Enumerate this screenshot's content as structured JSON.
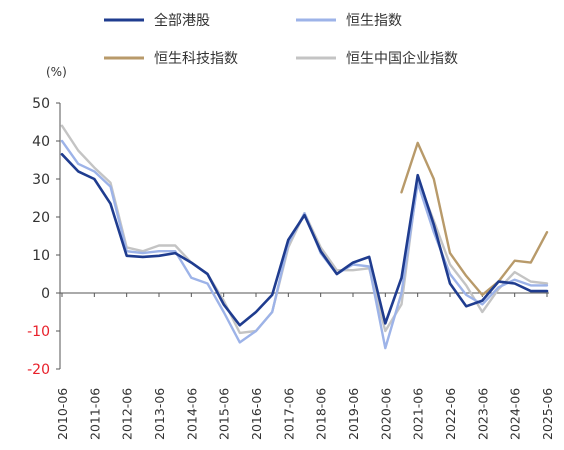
{
  "chart_data": {
    "type": "line",
    "unit_label": "(%)",
    "x": [
      "2010-06",
      "2010-12",
      "2011-06",
      "2011-12",
      "2012-06",
      "2012-12",
      "2013-06",
      "2013-12",
      "2014-06",
      "2014-12",
      "2015-06",
      "2015-12",
      "2016-06",
      "2016-12",
      "2017-06",
      "2017-12",
      "2018-06",
      "2018-12",
      "2019-06",
      "2019-12",
      "2020-06",
      "2020-12",
      "2021-06",
      "2021-12",
      "2022-06",
      "2022-12",
      "2023-06",
      "2023-12",
      "2024-06",
      "2024-12",
      "2025-06"
    ],
    "x_tick_labels": [
      "2010-06",
      "2011-06",
      "2012-06",
      "2013-06",
      "2014-06",
      "2015-06",
      "2016-06",
      "2017-06",
      "2018-06",
      "2019-06",
      "2020-06",
      "2021-06",
      "2022-06",
      "2023-06",
      "2024-06",
      "2025-06"
    ],
    "ylim": [
      -20,
      50
    ],
    "y_ticks": [
      50,
      40,
      30,
      20,
      10,
      0,
      -10,
      -20
    ],
    "negative_tick_color": "#e8202a",
    "legend_position": "top",
    "series": [
      {
        "name": "全部港股",
        "color": "#1f3c8f",
        "values": [
          36.5,
          32,
          30,
          23.5,
          9.8,
          9.5,
          9.8,
          10.5,
          8,
          5,
          -3,
          -8.5,
          -5,
          -0.5,
          14,
          20.5,
          11,
          5,
          8,
          9.5,
          -8,
          4,
          31,
          18,
          2.5,
          -3.5,
          -2,
          3,
          2.5,
          0.5,
          0.5
        ]
      },
      {
        "name": "恒生指数",
        "color": "#9db3e8",
        "values": [
          40,
          34,
          32,
          28,
          11,
          10.5,
          11,
          11,
          4,
          2.5,
          -5,
          -13,
          -10,
          -5,
          13,
          21,
          10.5,
          5,
          7.5,
          7,
          -14.5,
          0,
          29,
          16,
          5,
          -0.5,
          -3,
          1.5,
          3.5,
          2,
          2
        ]
      },
      {
        "name": "恒生科技指数",
        "color": "#b89a6a",
        "values": [
          null,
          null,
          null,
          null,
          null,
          null,
          null,
          null,
          null,
          null,
          null,
          null,
          null,
          null,
          null,
          null,
          null,
          null,
          null,
          null,
          null,
          26.5,
          39.5,
          30,
          10.5,
          4.5,
          -0.5,
          3,
          8.5,
          8,
          16
        ]
      },
      {
        "name": "恒生中国企业指数",
        "color": "#c4c4c4",
        "values": [
          44,
          37.5,
          33,
          29,
          12,
          11,
          12.5,
          12.5,
          8,
          5,
          -2,
          -10.5,
          -10,
          -5,
          12,
          21,
          12,
          6,
          6,
          6.5,
          -10,
          -3,
          30,
          19,
          7.5,
          2,
          -5,
          1,
          5.5,
          3,
          2.5
        ]
      }
    ]
  }
}
